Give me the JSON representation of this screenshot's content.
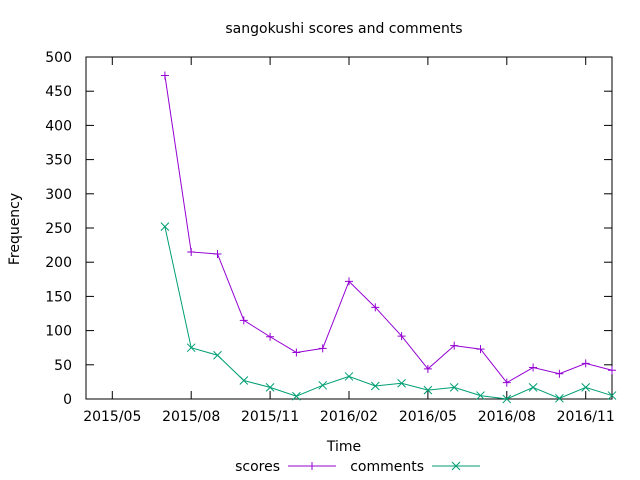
{
  "chart_data": {
    "type": "line",
    "title": "sangokushi scores and comments",
    "xlabel": "Time",
    "ylabel": "Frequency",
    "x_range": [
      "2015-04",
      "2016-12"
    ],
    "ylim": [
      0,
      500
    ],
    "y_ticks": [
      0,
      50,
      100,
      150,
      200,
      250,
      300,
      350,
      400,
      450,
      500
    ],
    "x_ticks": [
      "2015-05",
      "2015-08",
      "2015-11",
      "2016-02",
      "2016-05",
      "2016-08",
      "2016-11"
    ],
    "x_tick_labels": [
      "2015/05",
      "2015/08",
      "2015/11",
      "2016/02",
      "2016/05",
      "2016/08",
      "2016/11"
    ],
    "grid": false,
    "legend_position": "bottom",
    "x": [
      "2015-07",
      "2015-08",
      "2015-09",
      "2015-10",
      "2015-11",
      "2015-12",
      "2016-01",
      "2016-02",
      "2016-03",
      "2016-04",
      "2016-05",
      "2016-06",
      "2016-07",
      "2016-08",
      "2016-09",
      "2016-10",
      "2016-11",
      "2016-12"
    ],
    "series": [
      {
        "name": "scores",
        "color": "#9400d3",
        "marker": "plus",
        "values": [
          473,
          215,
          212,
          115,
          91,
          68,
          74,
          172,
          134,
          92,
          44,
          78,
          73,
          24,
          46,
          37,
          52,
          42
        ]
      },
      {
        "name": "comments",
        "color": "#009e73",
        "marker": "cross",
        "values": [
          252,
          75,
          64,
          27,
          17,
          4,
          20,
          33,
          19,
          23,
          13,
          17,
          5,
          0,
          17,
          1,
          17,
          5
        ]
      }
    ]
  }
}
